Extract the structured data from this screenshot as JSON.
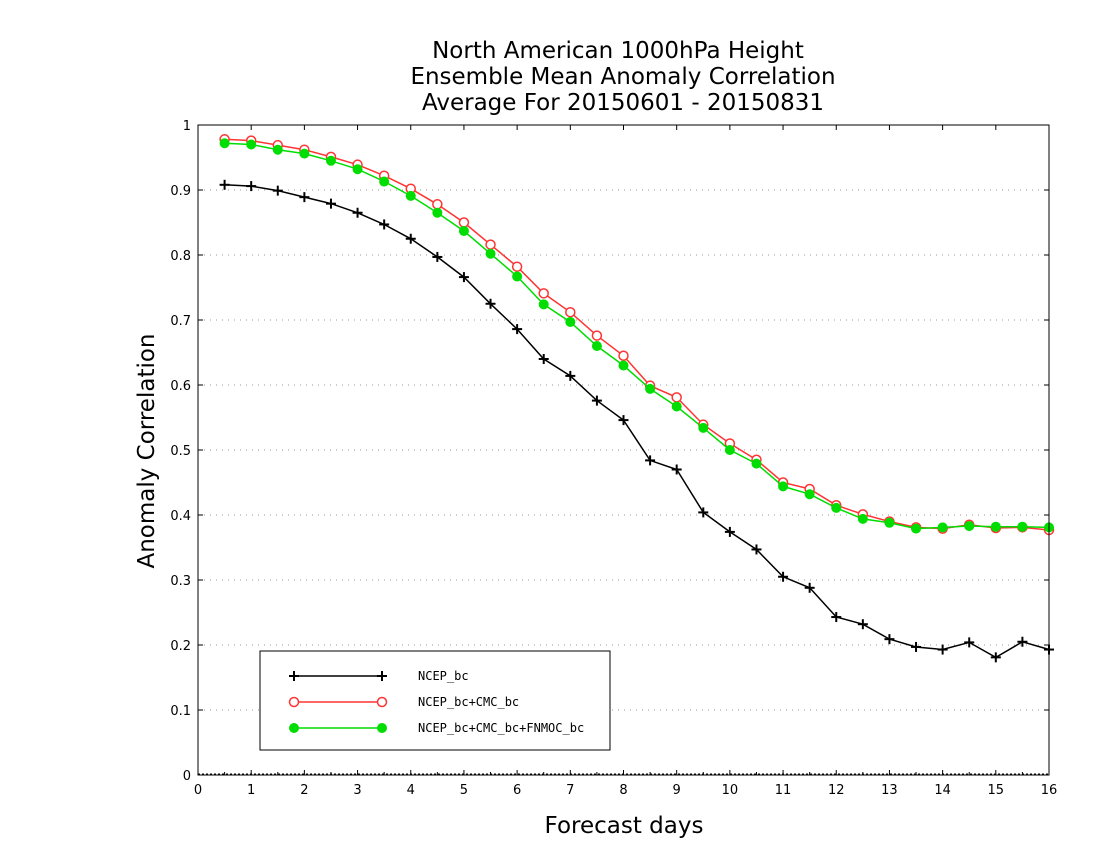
{
  "chart_data": {
    "type": "line",
    "title": [
      "North American 1000hPa Height",
      "Ensemble Mean Anomaly Correlation",
      "Average For 20150601 - 20150831"
    ],
    "xlabel": "Forecast days",
    "ylabel": "Anomaly Correlation",
    "xlim": [
      0,
      16
    ],
    "ylim": [
      0,
      1
    ],
    "x_ticks": [
      "0",
      "1",
      "2",
      "3",
      "4",
      "5",
      "6",
      "7",
      "8",
      "9",
      "10",
      "11",
      "12",
      "13",
      "14",
      "15",
      "16"
    ],
    "y_ticks": [
      "0",
      "0.1",
      "0.2",
      "0.3",
      "0.4",
      "0.5",
      "0.6",
      "0.7",
      "0.8",
      "0.9",
      "1"
    ],
    "grid": true,
    "legend_position": "bottom-left",
    "x": [
      0.5,
      1,
      1.5,
      2,
      2.5,
      3,
      3.5,
      4,
      4.5,
      5,
      5.5,
      6,
      6.5,
      7,
      7.5,
      8,
      8.5,
      9,
      9.5,
      10,
      10.5,
      11,
      11.5,
      12,
      12.5,
      13,
      13.5,
      14,
      14.5,
      15,
      15.5,
      16
    ],
    "series": [
      {
        "name": "NCEP_bc",
        "color": "#000000",
        "marker": "plus",
        "values": [
          0.908,
          0.906,
          0.899,
          0.889,
          0.879,
          0.865,
          0.847,
          0.825,
          0.797,
          0.766,
          0.725,
          0.686,
          0.64,
          0.614,
          0.576,
          0.546,
          0.484,
          0.47,
          0.404,
          0.374,
          0.347,
          0.305,
          0.288,
          0.243,
          0.232,
          0.209,
          0.197,
          0.193,
          0.204,
          0.181,
          0.205,
          0.193
        ]
      },
      {
        "name": "NCEP_bc+CMC_bc",
        "color": "#ff3333",
        "marker": "open-circle",
        "values": [
          0.978,
          0.976,
          0.969,
          0.962,
          0.951,
          0.939,
          0.922,
          0.902,
          0.878,
          0.85,
          0.816,
          0.782,
          0.741,
          0.712,
          0.676,
          0.645,
          0.599,
          0.581,
          0.539,
          0.51,
          0.485,
          0.45,
          0.44,
          0.415,
          0.401,
          0.39,
          0.381,
          0.379,
          0.385,
          0.38,
          0.381,
          0.377
        ]
      },
      {
        "name": "NCEP_bc+CMC_bc+FNMOC_bc",
        "color": "#00dd00",
        "marker": "filled-circle",
        "values": [
          0.972,
          0.97,
          0.962,
          0.956,
          0.945,
          0.932,
          0.913,
          0.891,
          0.865,
          0.837,
          0.802,
          0.767,
          0.724,
          0.697,
          0.66,
          0.63,
          0.594,
          0.567,
          0.534,
          0.5,
          0.479,
          0.444,
          0.432,
          0.411,
          0.394,
          0.388,
          0.379,
          0.381,
          0.383,
          0.382,
          0.382,
          0.381
        ]
      }
    ]
  }
}
